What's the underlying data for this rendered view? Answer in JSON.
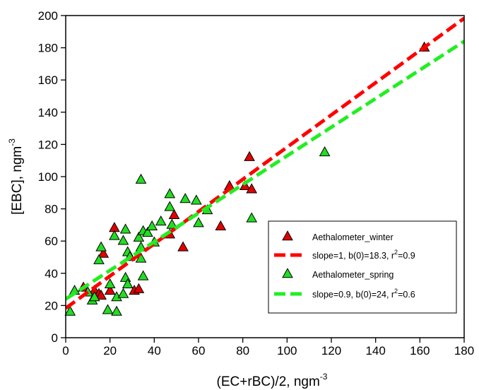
{
  "chart_data": {
    "type": "scatter",
    "xlabel": "(EC+rBC)/2, ngm",
    "xlabel_sup": "-3",
    "ylabel": "[EBC], ngm",
    "ylabel_sup": "-3",
    "xlim": [
      0,
      180
    ],
    "ylim": [
      0,
      200
    ],
    "xticks": [
      0,
      20,
      40,
      60,
      80,
      100,
      120,
      140,
      160,
      180
    ],
    "yticks": [
      0,
      20,
      40,
      60,
      80,
      100,
      120,
      140,
      160,
      180,
      200
    ],
    "grid": false,
    "legend_position": "bottom-right",
    "series": [
      {
        "name": "Aethalometer_winter",
        "kind": "scatter",
        "marker": "triangle",
        "color": "#e00000",
        "points": [
          [
            8,
            31
          ],
          [
            13,
            29
          ],
          [
            15,
            27
          ],
          [
            16,
            26
          ],
          [
            17,
            52
          ],
          [
            20,
            29
          ],
          [
            22,
            68
          ],
          [
            31,
            29
          ],
          [
            33,
            30
          ],
          [
            47,
            64
          ],
          [
            49,
            76
          ],
          [
            53,
            56
          ],
          [
            70,
            69
          ],
          [
            74,
            94
          ],
          [
            81,
            94
          ],
          [
            83,
            112
          ],
          [
            84,
            92
          ],
          [
            162,
            180
          ]
        ]
      },
      {
        "name": "slope=1, b(0)=18.3, r",
        "name_sup": "2",
        "name_suffix": "=0.9",
        "kind": "line",
        "dash": true,
        "color": "#ff0000",
        "slope": 1,
        "intercept": 18.3
      },
      {
        "name": "Aethalometer_spring",
        "kind": "scatter",
        "marker": "triangle",
        "color": "#22dd22",
        "points": [
          [
            2,
            16
          ],
          [
            4,
            29
          ],
          [
            10,
            28
          ],
          [
            12,
            23
          ],
          [
            13,
            25
          ],
          [
            15,
            48
          ],
          [
            16,
            56
          ],
          [
            19,
            17
          ],
          [
            20,
            33
          ],
          [
            22,
            63
          ],
          [
            23,
            25
          ],
          [
            23,
            16
          ],
          [
            26,
            27
          ],
          [
            26,
            60
          ],
          [
            27,
            37
          ],
          [
            27,
            67
          ],
          [
            28,
            33
          ],
          [
            28,
            53
          ],
          [
            29,
            50
          ],
          [
            33,
            62
          ],
          [
            34,
            56
          ],
          [
            34,
            49
          ],
          [
            34,
            98
          ],
          [
            35,
            66
          ],
          [
            35,
            38
          ],
          [
            37,
            65
          ],
          [
            39,
            69
          ],
          [
            40,
            59
          ],
          [
            43,
            72
          ],
          [
            47,
            89
          ],
          [
            47,
            81
          ],
          [
            48,
            70
          ],
          [
            54,
            86
          ],
          [
            59,
            85
          ],
          [
            60,
            71
          ],
          [
            64,
            79
          ],
          [
            84,
            74
          ],
          [
            117,
            115
          ]
        ]
      },
      {
        "name": "slope=0.9, b(0)=24, r",
        "name_sup": "2",
        "name_suffix": "=0.6",
        "kind": "line",
        "dash": true,
        "color": "#22ee22",
        "slope": 0.889,
        "intercept": 24
      }
    ]
  }
}
